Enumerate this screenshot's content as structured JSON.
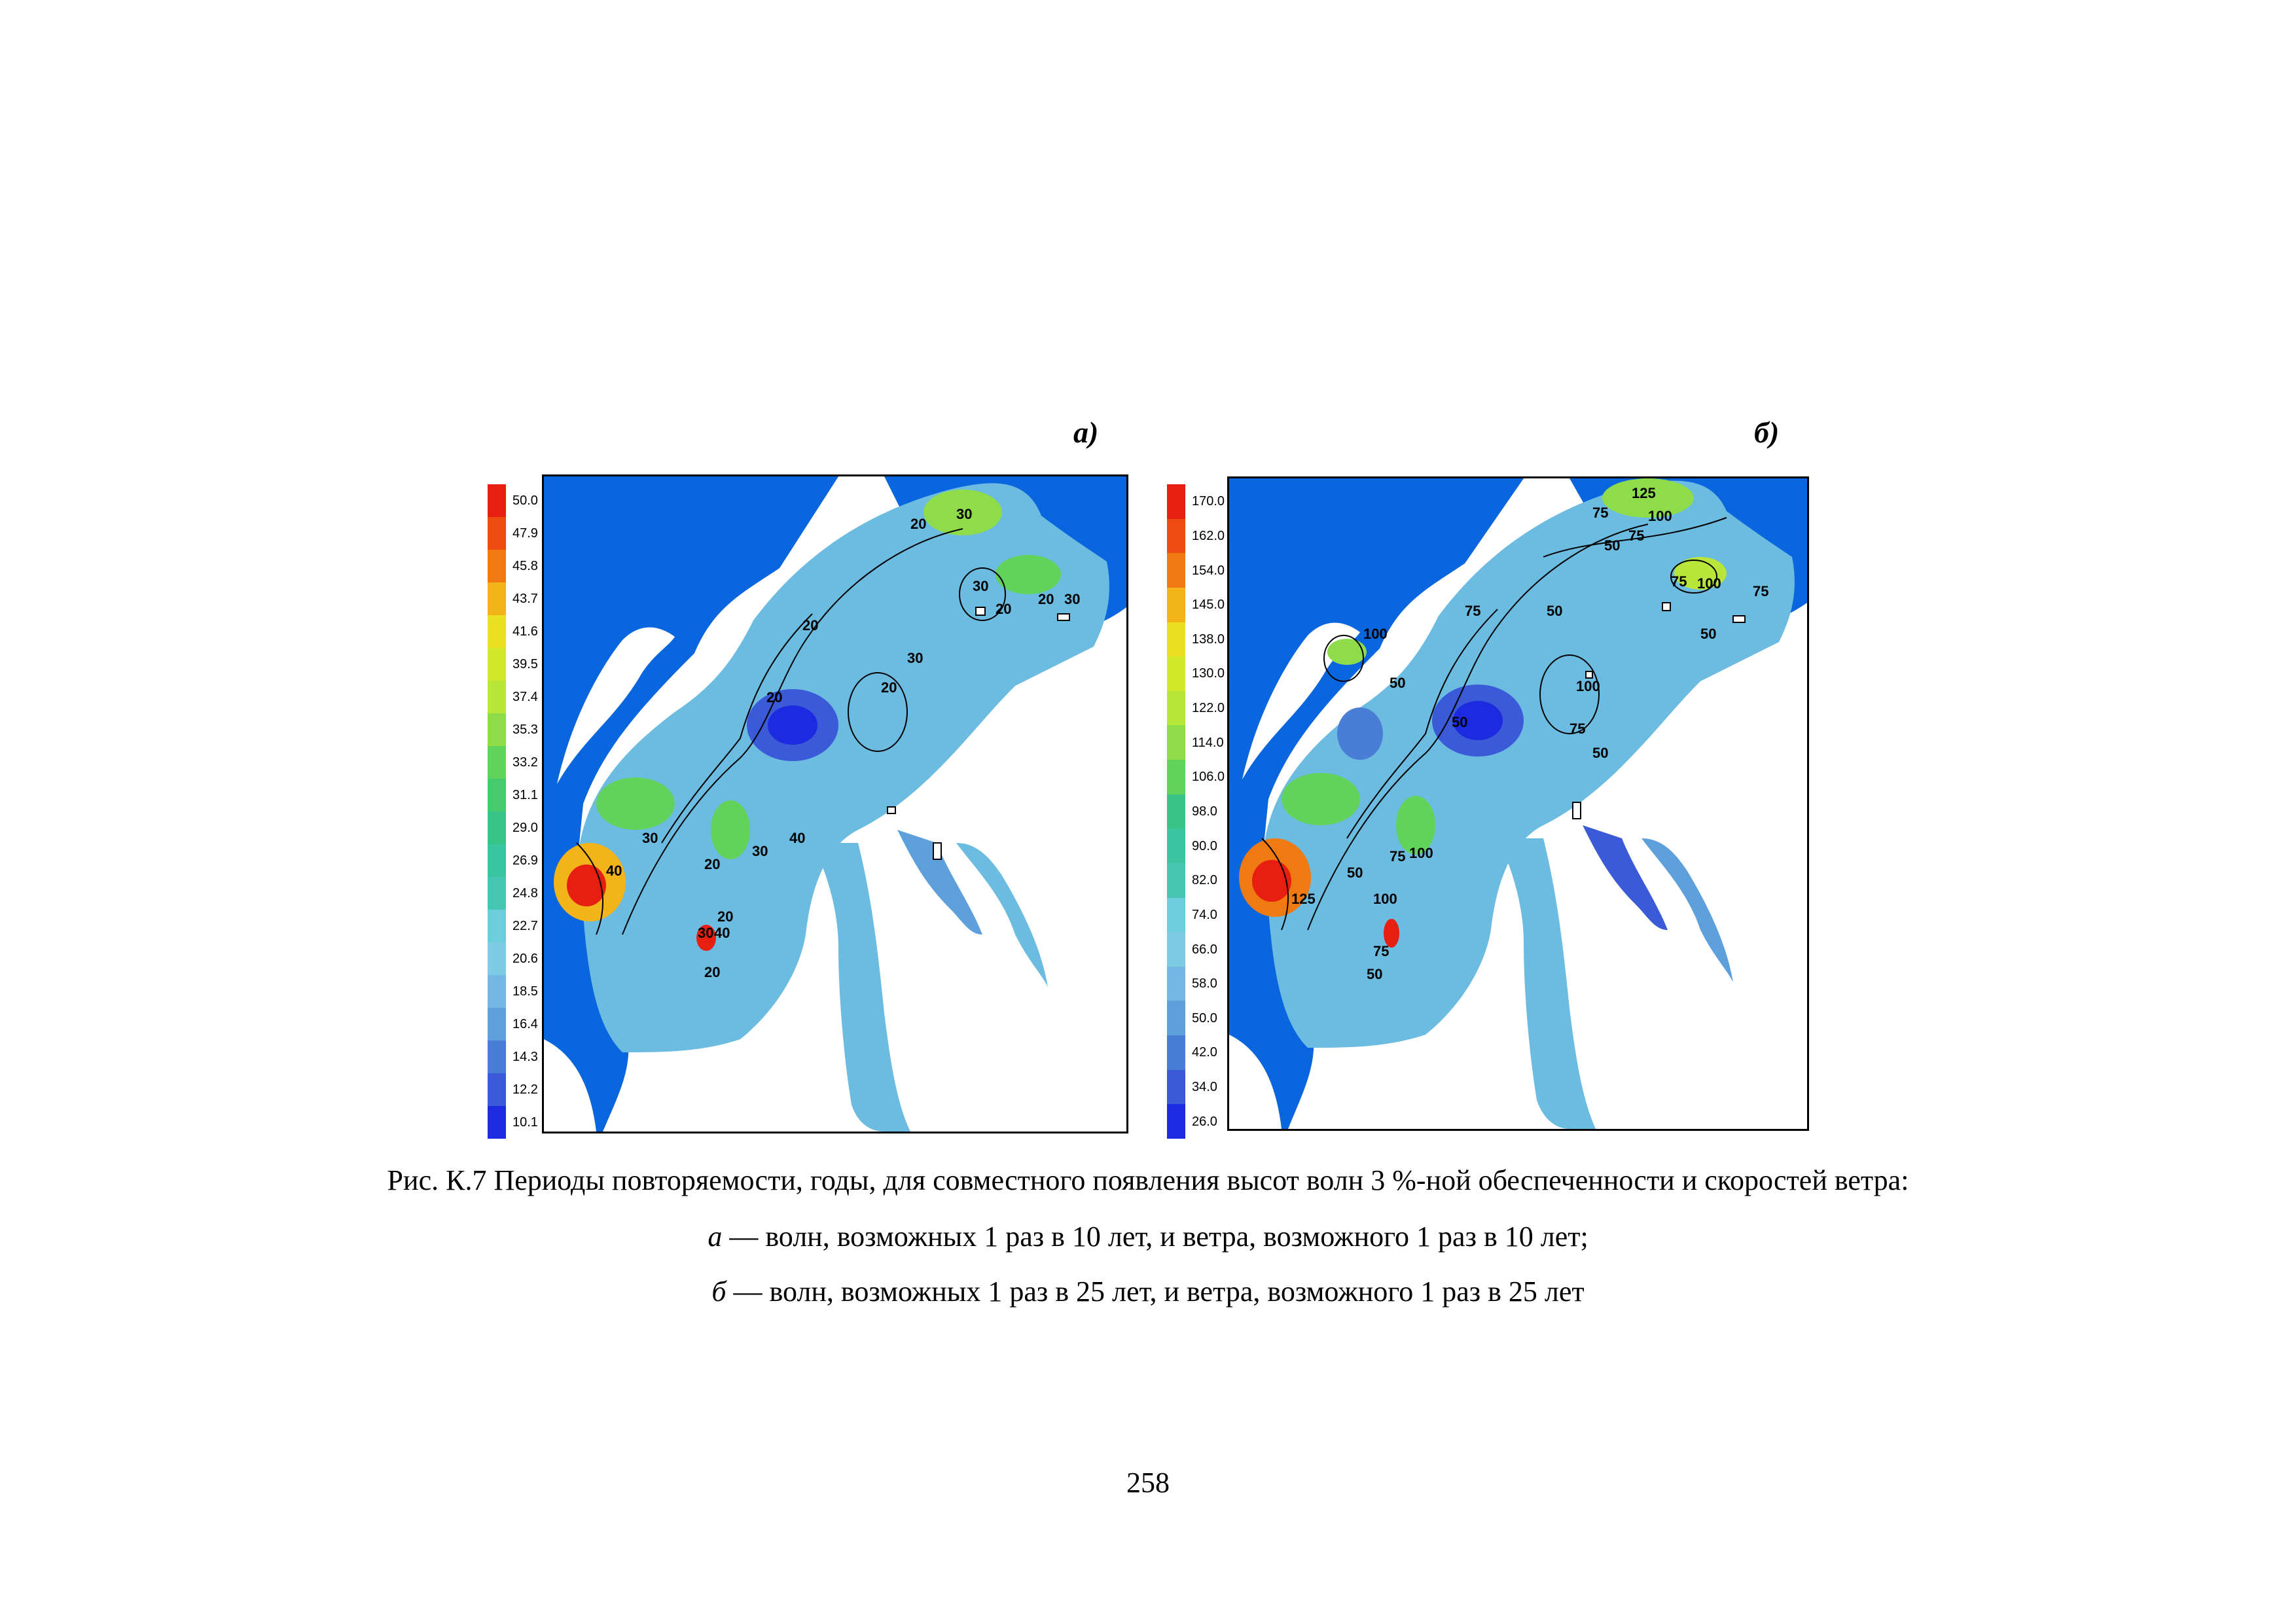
{
  "panels": [
    {
      "letter": "а)",
      "scale_ticks": [
        "50.0",
        "47.9",
        "45.8",
        "43.7",
        "41.6",
        "39.5",
        "37.4",
        "35.3",
        "33.2",
        "31.1",
        "29.0",
        "26.9",
        "24.8",
        "22.7",
        "20.6",
        "18.5",
        "16.4",
        "14.3",
        "12.2",
        "10.1"
      ],
      "contour_labels": [
        "20",
        "30",
        "30",
        "20",
        "20",
        "30",
        "20",
        "30",
        "20",
        "20",
        "30",
        "20",
        "30",
        "40",
        "20",
        "40",
        "30",
        "40",
        "20"
      ]
    },
    {
      "letter": "б)",
      "scale_ticks": [
        "170.0",
        "162.0",
        "154.0",
        "145.0",
        "138.0",
        "130.0",
        "122.0",
        "114.0",
        "106.0",
        "98.0",
        "90.0",
        "82.0",
        "74.0",
        "66.0",
        "58.0",
        "50.0",
        "42.0",
        "34.0",
        "26.0"
      ],
      "contour_labels": [
        "125",
        "75",
        "100",
        "75",
        "50",
        "75",
        "100",
        "75",
        "50",
        "75",
        "50",
        "100",
        "100",
        "50",
        "50",
        "75",
        "50",
        "50",
        "100",
        "100",
        "75",
        "125",
        "75",
        "50"
      ]
    }
  ],
  "scale_colors": [
    "#e81e10",
    "#ef4a12",
    "#f07a12",
    "#f3b41a",
    "#eadf20",
    "#d2e82a",
    "#b9e63a",
    "#8fdc4a",
    "#62d35a",
    "#46cb6c",
    "#39c387",
    "#3cc39f",
    "#48c4b3",
    "#6dcddd",
    "#7ecbe6",
    "#73b8e4",
    "#5ea0dc",
    "#4a7ed6",
    "#3a5ad8",
    "#1c2ae0"
  ],
  "caption": {
    "line1": "Рис. К.7 Периоды повторяемости, годы, для совместного появления высот волн 3 %-ной обеспеченности и скоростей ветра:",
    "line2_letter": "а",
    "line2_text": " — волн, возможных 1 раз в 10 лет, и ветра, возможного 1 раз в 10 лет;",
    "line3_letter": "б",
    "line3_text": " — волн, возможных 1 раз в 25 лет, и ветра, возможного 1 раз в 25 лет"
  },
  "page_number": "258",
  "colors": {
    "sea_dark": "#0a66de",
    "water_mid": "#6cbbe0",
    "land": "#ffffff"
  }
}
